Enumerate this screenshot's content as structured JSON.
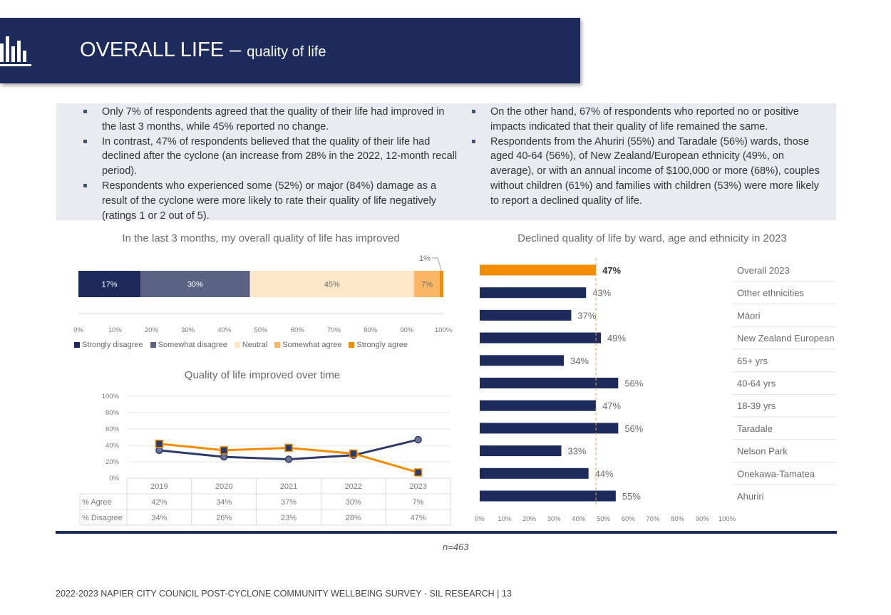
{
  "header": {
    "title_main": "OVERALL LIFE –",
    "title_sub": "quality of life",
    "icon": "bar-chart-icon"
  },
  "summary": {
    "left_bullets": [
      "Only 7% of respondents agreed that the quality of their life had improved in the last 3 months, while 45% reported no change.",
      "In contrast, 47% of respondents believed that the quality of their life had declined after the cyclone (an increase from 28% in the 2022, 12-month recall period).",
      "Respondents who experienced some (52%) or major (84%) damage as a result of the cyclone were more likely to rate their quality of life negatively (ratings 1 or 2 out of 5)."
    ],
    "right_bullets": [
      "On the other hand, 67% of respondents who reported no or positive impacts indicated that their quality of life remained the same.",
      "Respondents from the Ahuriri (55%) and Taradale (56%) wards, those aged 40-64 (56%), of New Zealand/European ethnicity (49%, on average), or with an annual income of $100,000 or more (68%), couples without children (61%) and families with children (53%) were more likely to report a declined quality of life."
    ]
  },
  "colors": {
    "navy": "#1c2a5c",
    "slate": "#5a6384",
    "neutral": "#fde7c8",
    "light_orange": "#fbb665",
    "orange": "#f28c00",
    "text_box_bg": "#e9ebf0"
  },
  "chart_data": [
    {
      "type": "bar",
      "orientation": "horizontal-stacked",
      "title": "In the last 3 months, my overall quality of life has improved",
      "series": [
        {
          "name": "Strongly disagree",
          "value": 17,
          "label": "17%",
          "color": "#1c2a5c"
        },
        {
          "name": "Somewhat disagree",
          "value": 30,
          "label": "30%",
          "color": "#5a6384"
        },
        {
          "name": "Neutral",
          "value": 45,
          "label": "45%",
          "color": "#fde7c8"
        },
        {
          "name": "Somewhat agree",
          "value": 7,
          "label": "7%",
          "color": "#fbb665"
        },
        {
          "name": "Strongly agree",
          "value": 1,
          "label": "1%",
          "color": "#f28c00"
        }
      ],
      "xticks": [
        "0%",
        "10%",
        "20%",
        "30%",
        "40%",
        "50%",
        "60%",
        "70%",
        "80%",
        "90%",
        "100%"
      ],
      "xlim": [
        0,
        100
      ],
      "legend": "bottom"
    },
    {
      "type": "line",
      "title": "Quality of life improved over time",
      "x": [
        "2019",
        "2020",
        "2021",
        "2022",
        "2023"
      ],
      "series": [
        {
          "name": "% Agree",
          "values": [
            42,
            34,
            37,
            30,
            7
          ],
          "labels": [
            "42%",
            "34%",
            "37%",
            "30%",
            "7%"
          ],
          "color": "#f28c00",
          "marker": "square"
        },
        {
          "name": "% Disagree",
          "values": [
            34,
            26,
            23,
            28,
            47
          ],
          "labels": [
            "34%",
            "26%",
            "23%",
            "28%",
            "47%"
          ],
          "color": "#2e3b68",
          "marker": "circle"
        }
      ],
      "yticks": [
        "0%",
        "20%",
        "40%",
        "60%",
        "80%",
        "100%"
      ],
      "ylim": [
        0,
        100
      ],
      "data_table": true
    },
    {
      "type": "bar",
      "orientation": "horizontal",
      "title": "Declined quality of life by ward, age and ethnicity in 2023",
      "categories": [
        "Overall 2023",
        "Other ethnicities",
        "Māori",
        "New Zealand European",
        "65+ yrs",
        "40-64 yrs",
        "18-39 yrs",
        "Taradale",
        "Nelson Park",
        "Onekawa-Tamatea",
        "Ahuriri"
      ],
      "values": [
        47,
        43,
        37,
        49,
        34,
        56,
        47,
        56,
        33,
        44,
        55
      ],
      "labels": [
        "47%",
        "43%",
        "37%",
        "49%",
        "34%",
        "56%",
        "47%",
        "56%",
        "33%",
        "44%",
        "55%"
      ],
      "highlight_index": 0,
      "reference_line": 47,
      "xticks": [
        "0%",
        "10%",
        "20%",
        "30%",
        "40%",
        "50%",
        "60%",
        "70%",
        "80%",
        "90%",
        "100%"
      ],
      "xlim": [
        0,
        100
      ]
    }
  ],
  "note": "n=463",
  "footer": "2022-2023 NAPIER CITY COUNCIL POST-CYCLONE COMMUNITY WELLBEING SURVEY - SIL RESEARCH | 13"
}
